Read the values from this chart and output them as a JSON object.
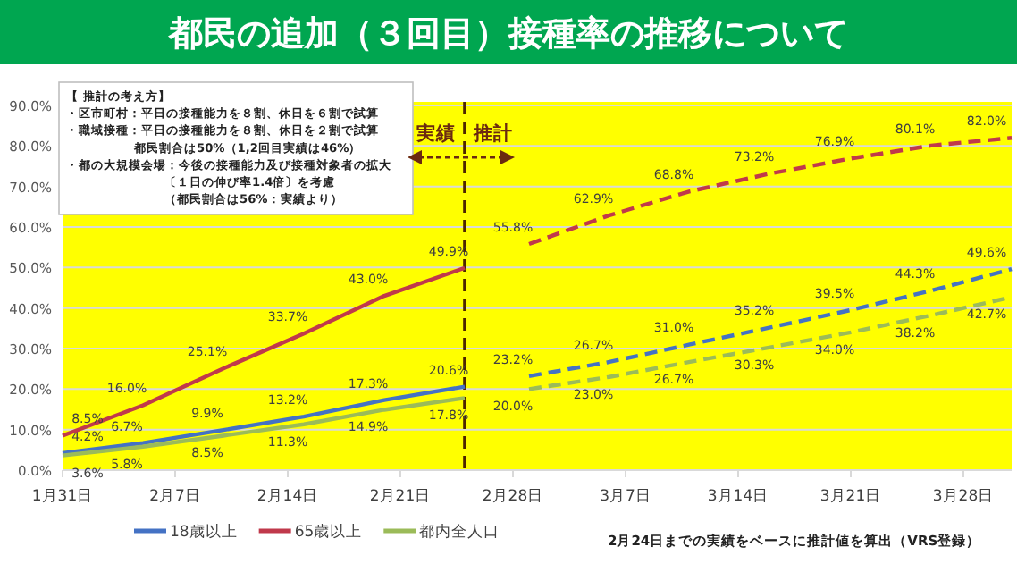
{
  "chart_data": {
    "type": "line",
    "title": "都民の追加（３回目）接種率の推移について",
    "xlim": [
      "--01-31",
      "--03-31"
    ],
    "xticks": [
      {
        "value": "--01-31",
        "label": "1月31日"
      },
      {
        "value": "--02-07",
        "label": "2月7日"
      },
      {
        "value": "--02-14",
        "label": "2月14日"
      },
      {
        "value": "--02-21",
        "label": "2月21日"
      },
      {
        "value": "--02-28",
        "label": "2月28日"
      },
      {
        "value": "--03-07",
        "label": "3月7日"
      },
      {
        "value": "--03-14",
        "label": "3月14日"
      },
      {
        "value": "--03-21",
        "label": "3月21日"
      },
      {
        "value": "--03-28",
        "label": "3月28日"
      }
    ],
    "ylim": [
      0,
      90
    ],
    "yticks": [
      {
        "value": 0,
        "label": "0.0%"
      },
      {
        "value": 10,
        "label": "10.0%"
      },
      {
        "value": 20,
        "label": "20.0%"
      },
      {
        "value": 30,
        "label": "30.0%"
      },
      {
        "value": 40,
        "label": "40.0%"
      },
      {
        "value": 50,
        "label": "50.0%"
      },
      {
        "value": 60,
        "label": "60.0%"
      },
      {
        "value": 70,
        "label": "70.0%"
      },
      {
        "value": 80,
        "label": "80.0%"
      },
      {
        "value": 90,
        "label": "90.0%"
      }
    ],
    "grid": "y",
    "legend": "bottom",
    "marker": "none",
    "series": [
      {
        "name": "18歳以上",
        "color": "#4472c4",
        "line_style": "solid",
        "x": [
          "--01-31",
          "--02-05",
          "--02-10",
          "--02-15",
          "--02-20",
          "--02-25"
        ],
        "values": [
          4.2,
          6.7,
          9.9,
          13.2,
          17.3,
          20.6
        ],
        "value_labels": [
          "4.2%",
          "6.7%",
          "9.9%",
          "13.2%",
          "17.3%",
          "20.6%"
        ]
      },
      {
        "name": "65歳以上",
        "color": "#c0394b",
        "line_style": "solid",
        "x": [
          "--01-31",
          "--02-05",
          "--02-10",
          "--02-15",
          "--02-20",
          "--02-25"
        ],
        "values": [
          8.5,
          16.0,
          25.1,
          33.7,
          43.0,
          49.9
        ],
        "value_labels": [
          "8.5%",
          "16.0%",
          "25.1%",
          "33.7%",
          "43.0%",
          "49.9%"
        ]
      },
      {
        "name": "都内全人口",
        "color": "#9bbb59",
        "line_style": "solid",
        "x": [
          "--01-31",
          "--02-05",
          "--02-10",
          "--02-15",
          "--02-20",
          "--02-25"
        ],
        "values": [
          3.6,
          5.8,
          8.5,
          11.3,
          14.9,
          17.8
        ],
        "value_labels": [
          "3.6%",
          "5.8%",
          "8.5%",
          "11.3%",
          "14.9%",
          "17.8%"
        ]
      },
      {
        "color": "#4472c4",
        "line_style": "dashed",
        "x": [
          "--03-01",
          "--03-06",
          "--03-11",
          "--03-16",
          "--03-21",
          "--03-26",
          "--03-31"
        ],
        "values": [
          23.2,
          26.7,
          31.0,
          35.2,
          39.5,
          44.3,
          49.6
        ],
        "value_labels": [
          "23.2%",
          "26.7%",
          "31.0%",
          "35.2%",
          "39.5%",
          "44.3%",
          "49.6%"
        ]
      },
      {
        "color": "#c0394b",
        "line_style": "dashed",
        "x": [
          "--03-01",
          "--03-06",
          "--03-11",
          "--03-16",
          "--03-21",
          "--03-26",
          "--03-31"
        ],
        "values": [
          55.8,
          62.9,
          68.8,
          73.2,
          76.9,
          80.1,
          82.0
        ],
        "value_labels": [
          "55.8%",
          "62.9%",
          "68.8%",
          "73.2%",
          "76.9%",
          "80.1%",
          "82.0%"
        ]
      },
      {
        "color": "#9bbb59",
        "line_style": "dashed",
        "x": [
          "--03-01",
          "--03-06",
          "--03-11",
          "--03-16",
          "--03-21",
          "--03-26",
          "--03-31"
        ],
        "values": [
          20.0,
          23.0,
          26.7,
          30.3,
          34.0,
          38.2,
          42.7
        ],
        "value_labels": [
          "20.0%",
          "23.0%",
          "26.7%",
          "30.3%",
          "34.0%",
          "38.2%",
          "42.7%"
        ]
      }
    ],
    "ref_lines": [
      {
        "axis": "x",
        "value": "--02-25",
        "color": "#4d2600",
        "line_style": "dashed"
      }
    ],
    "annotations": [
      "【 推計の考え方】",
      "・区市町村：平日の接種能力を８割、休日を６割で試算",
      "・職域接種：平日の接種能力を８割、休日を２割で試算",
      "都民割合は50%（1,2回目実績は46%）",
      "・都の大規模会場：今後の接種能力及び接種対象者の拡大",
      "〔１日の伸び率1.4倍〕を考慮",
      "（都民割合は56%：実績より）",
      "実績",
      "推計",
      "2月24日までの実績をベースに推計値を算出（VRS登録）"
    ]
  }
}
